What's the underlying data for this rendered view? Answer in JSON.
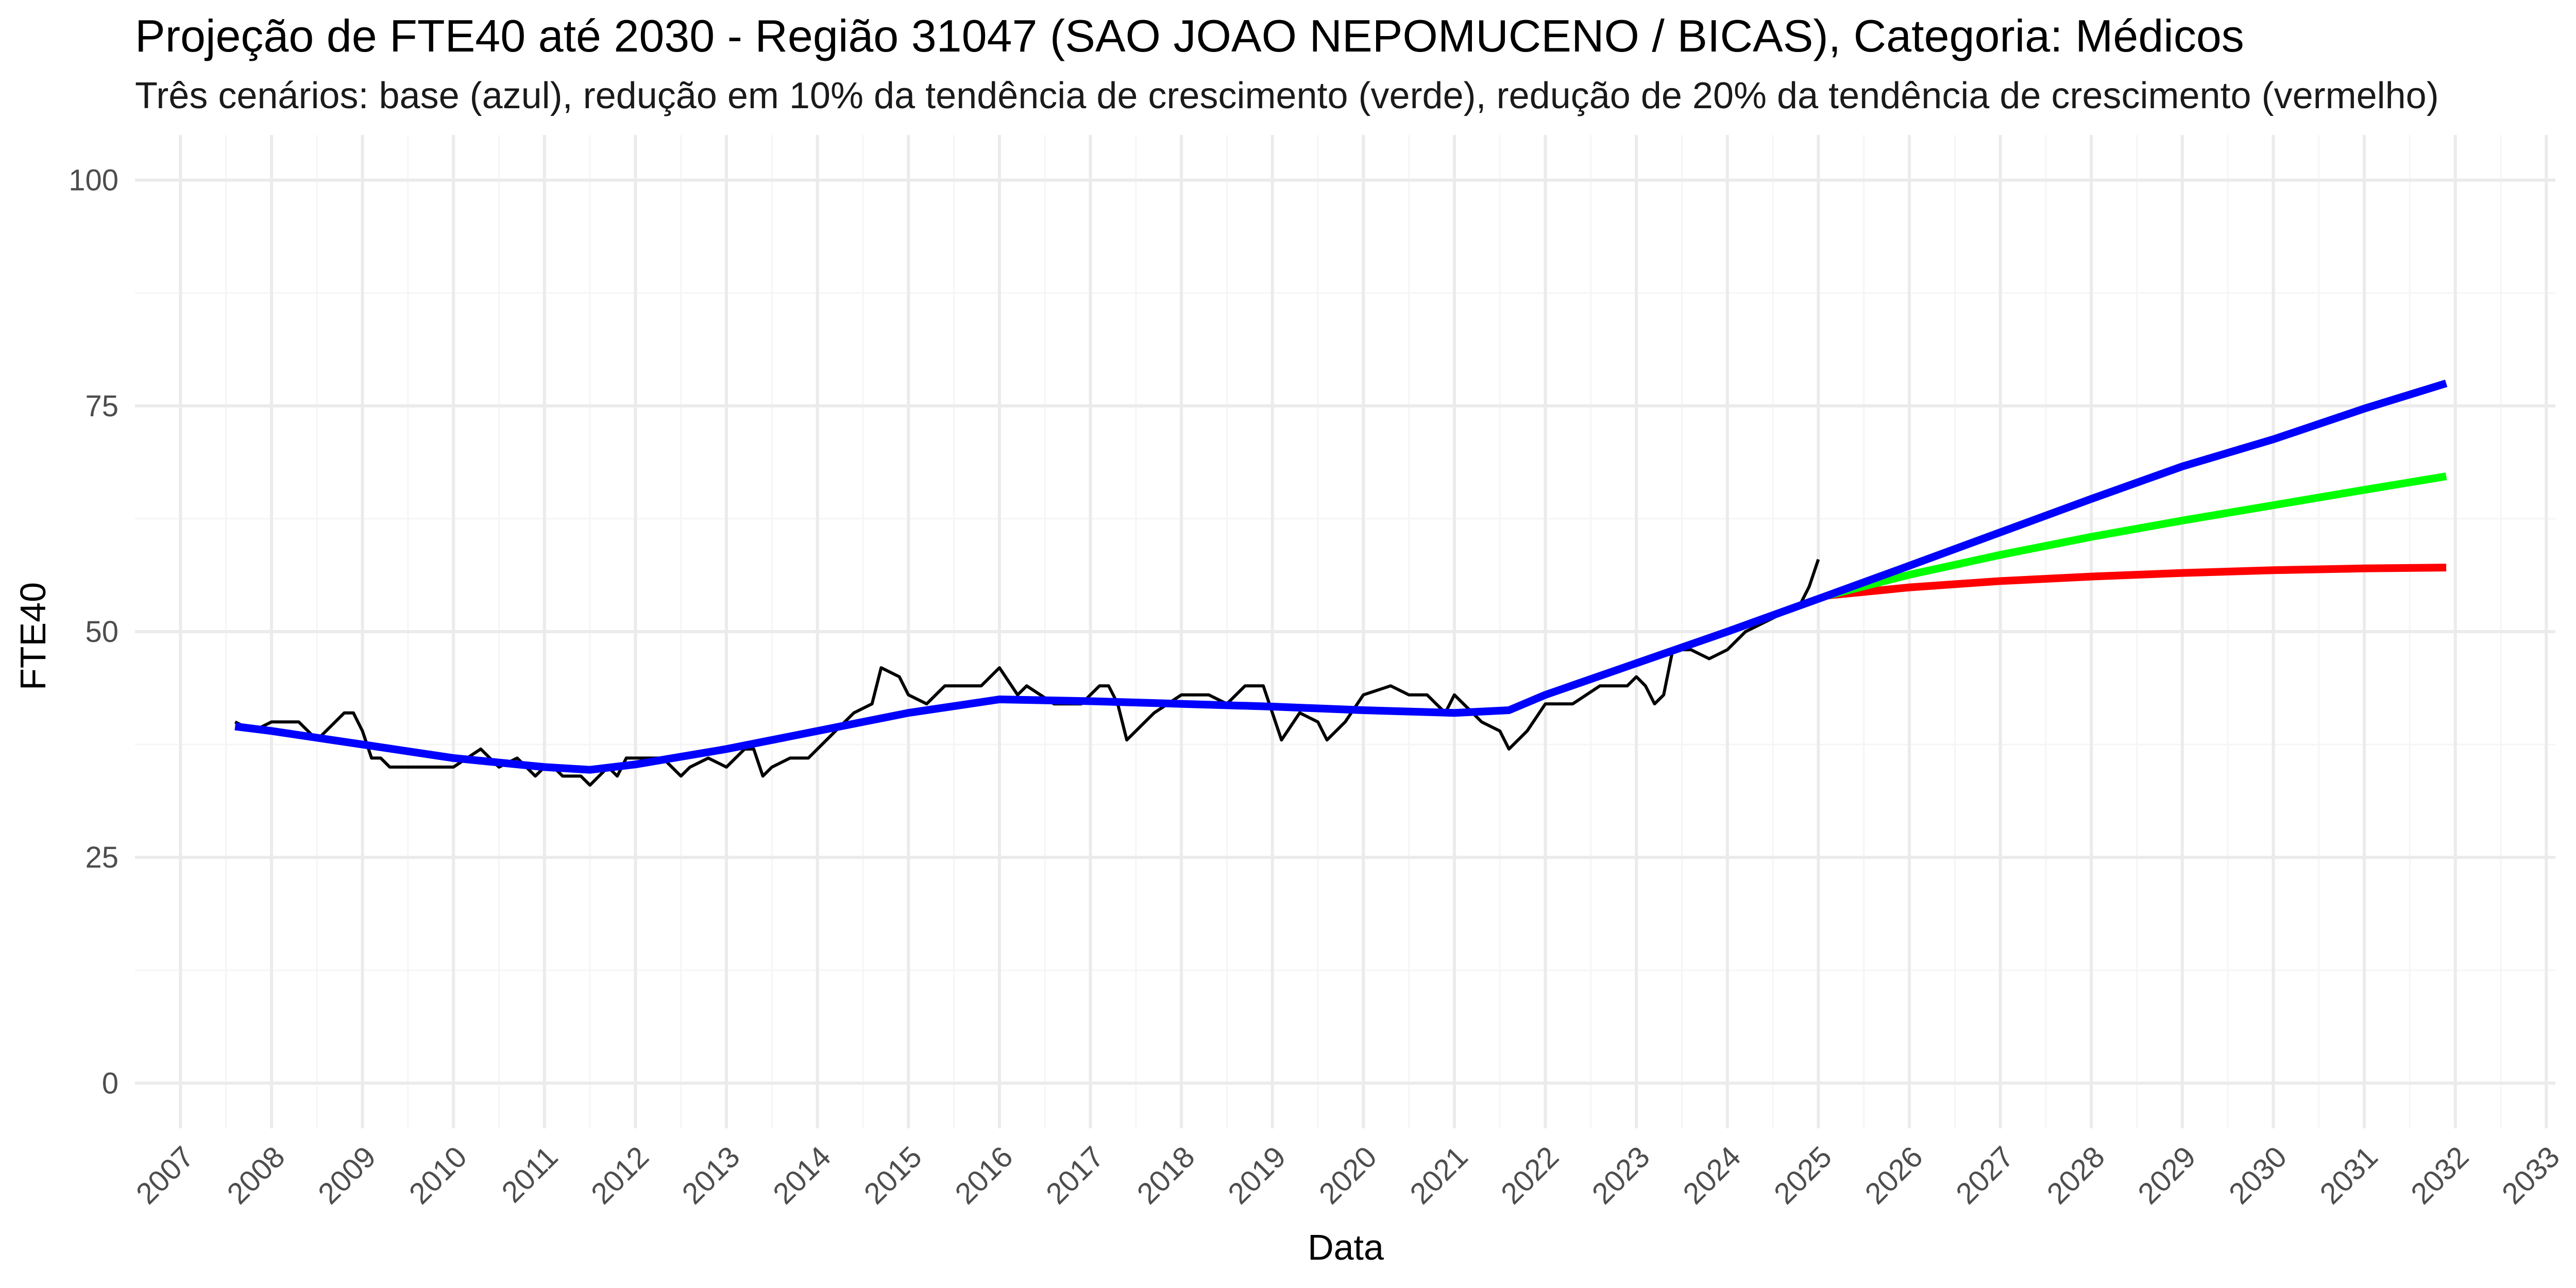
{
  "chart_data": {
    "type": "line",
    "title": "Projeção de FTE40 até 2030 - Região 31047 (SAO JOAO NEPOMUCENO / BICAS), Categoria: Médicos",
    "subtitle": "Três cenários: base (azul), redução em 10% da tendência de crescimento (verde), redução de 20% da tendência de crescimento (vermelho)",
    "xlabel": "Data",
    "ylabel": "FTE40",
    "xlim": [
      2006.5,
      2033.1
    ],
    "ylim": [
      -5,
      105
    ],
    "x_ticks": [
      2007,
      2008,
      2009,
      2010,
      2011,
      2012,
      2013,
      2014,
      2015,
      2016,
      2017,
      2018,
      2019,
      2020,
      2021,
      2022,
      2023,
      2024,
      2025,
      2026,
      2027,
      2028,
      2029,
      2030,
      2031,
      2032,
      2033
    ],
    "y_ticks": [
      0,
      25,
      50,
      75,
      100
    ],
    "grid": true,
    "legend": "none",
    "colors": {
      "observed": "#000000",
      "base": "#0000ff",
      "reduction_10": "#00ff00",
      "reduction_20": "#ff0000",
      "grid_major": "#ebebeb",
      "grid_minor": "#f5f5f5"
    },
    "series": [
      {
        "key": "observed",
        "x": [
          2007.6,
          2007.8,
          2008.0,
          2008.1,
          2008.3,
          2008.5,
          2008.7,
          2008.8,
          2008.9,
          2009.0,
          2009.1,
          2009.2,
          2009.3,
          2009.5,
          2009.7,
          2010.0,
          2010.3,
          2010.5,
          2010.7,
          2010.9,
          2011.0,
          2011.1,
          2011.2,
          2011.3,
          2011.4,
          2011.5,
          2011.6,
          2011.7,
          2011.8,
          2011.9,
          2012.0,
          2012.1,
          2012.3,
          2012.5,
          2012.6,
          2012.8,
          2013.0,
          2013.2,
          2013.3,
          2013.4,
          2013.5,
          2013.7,
          2013.9,
          2014.0,
          2014.2,
          2014.4,
          2014.6,
          2014.7,
          2014.9,
          2015.0,
          2015.2,
          2015.4,
          2015.6,
          2015.8,
          2016.0,
          2016.2,
          2016.3,
          2016.6,
          2016.9,
          2017.1,
          2017.2,
          2017.3,
          2017.4,
          2017.7,
          2018.0,
          2018.3,
          2018.5,
          2018.7,
          2018.9,
          2019.0,
          2019.1,
          2019.3,
          2019.5,
          2019.6,
          2019.8,
          2020.0,
          2020.3,
          2020.5,
          2020.7,
          2020.9,
          2021.0,
          2021.1,
          2021.3,
          2021.5,
          2021.6,
          2021.8,
          2022.0,
          2022.3,
          2022.6,
          2022.9,
          2023.0,
          2023.1,
          2023.2,
          2023.3,
          2023.4,
          2023.6,
          2023.8,
          2024.0,
          2024.2,
          2024.4,
          2024.6,
          2024.8,
          2024.9,
          2025.0
        ],
        "y": [
          40,
          39,
          40,
          40,
          40,
          38,
          40,
          41,
          41,
          39,
          36,
          36,
          35,
          35,
          35,
          35,
          37,
          35,
          36,
          34,
          35,
          35,
          34,
          34,
          34,
          33,
          34,
          35,
          34,
          36,
          36,
          36,
          36,
          34,
          35,
          36,
          35,
          37,
          37,
          34,
          35,
          36,
          36,
          37,
          39,
          41,
          42,
          46,
          45,
          43,
          42,
          44,
          44,
          44,
          46,
          43,
          44,
          42,
          42,
          44,
          44,
          42,
          38,
          41,
          43,
          43,
          42,
          44,
          44,
          41,
          38,
          41,
          40,
          38,
          40,
          43,
          44,
          43,
          43,
          41,
          43,
          42,
          40,
          39,
          37,
          39,
          42,
          42,
          44,
          44,
          45,
          44,
          42,
          43,
          48,
          48,
          47,
          48,
          50,
          51,
          52,
          53,
          55,
          58
        ]
      },
      {
        "key": "base",
        "x": [
          2007.6,
          2008,
          2009,
          2010,
          2011,
          2011.5,
          2012,
          2013,
          2014,
          2015,
          2016,
          2017,
          2018,
          2019,
          2020,
          2021,
          2021.6,
          2022,
          2023,
          2024,
          2025.1,
          2026,
          2027,
          2028,
          2029,
          2030,
          2031,
          2031.9
        ],
        "y": [
          39.5,
          39,
          37.5,
          36,
          35,
          34.7,
          35.3,
          37,
          39,
          41,
          42.5,
          42.3,
          42,
          41.7,
          41.3,
          41,
          41.3,
          43,
          46.5,
          50,
          54,
          57.3,
          61,
          64.7,
          68.3,
          71.3,
          74.7,
          77.5
        ]
      },
      {
        "key": "reduction_10",
        "x": [
          2025.1,
          2026,
          2027,
          2028,
          2029,
          2030,
          2031,
          2031.9
        ],
        "y": [
          54,
          56.3,
          58.5,
          60.5,
          62.3,
          64,
          65.7,
          67.2
        ]
      },
      {
        "key": "reduction_20",
        "x": [
          2025.1,
          2026,
          2027,
          2028,
          2029,
          2030,
          2031,
          2031.9
        ],
        "y": [
          54,
          54.9,
          55.6,
          56.1,
          56.5,
          56.8,
          57,
          57.1
        ]
      }
    ]
  }
}
